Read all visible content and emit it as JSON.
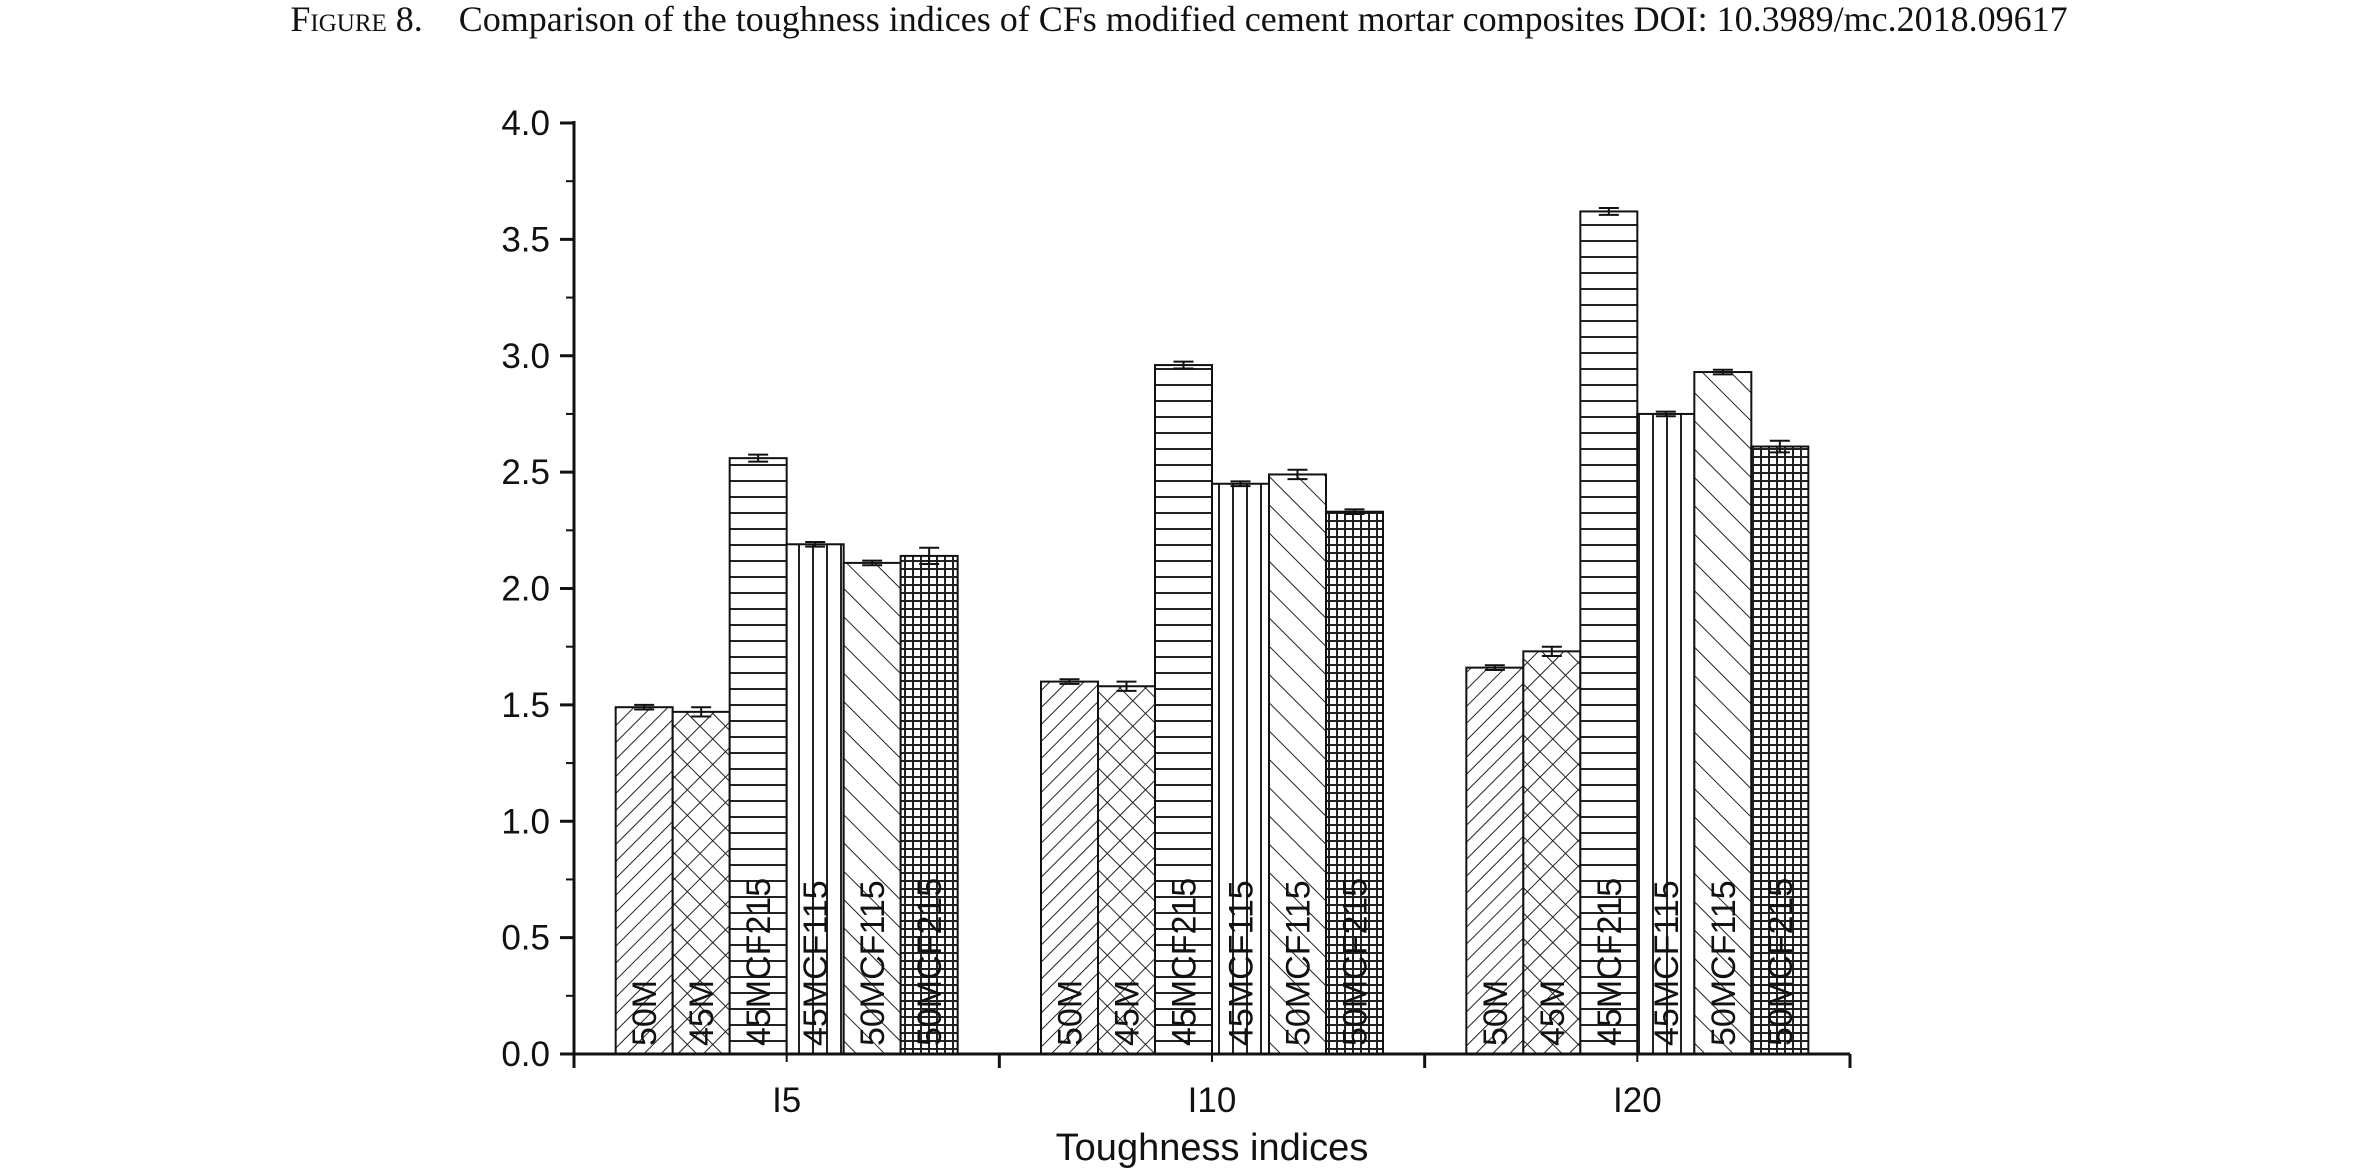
{
  "caption": {
    "figure": "Figure 8.",
    "text": "Comparison of the toughness indices of CFs modified cement mortar composites DOI: 10.3989/mc.2018.09617"
  },
  "chart_data": {
    "type": "bar",
    "title": "",
    "xlabel": "Toughness indices",
    "ylabel": "",
    "ylim": [
      0,
      4.0
    ],
    "yticks": [
      "0.0",
      "0.5",
      "1.0",
      "1.5",
      "2.0",
      "2.5",
      "3.0",
      "3.5",
      "4.0"
    ],
    "categories": [
      "I5",
      "I10",
      "I20"
    ],
    "series": [
      {
        "name": "50M",
        "values": [
          1.49,
          1.6,
          1.66
        ],
        "errors": [
          0.01,
          0.01,
          0.01
        ],
        "pattern": "diag-right"
      },
      {
        "name": "45M",
        "values": [
          1.47,
          1.58,
          1.73
        ],
        "errors": [
          0.02,
          0.02,
          0.02
        ],
        "pattern": "cross-hatch"
      },
      {
        "name": "45MCF215",
        "values": [
          2.56,
          2.96,
          3.62
        ],
        "errors": [
          0.015,
          0.015,
          0.015
        ],
        "pattern": "horizontal"
      },
      {
        "name": "45MCF115",
        "values": [
          2.19,
          2.45,
          2.75
        ],
        "errors": [
          0.01,
          0.01,
          0.01
        ],
        "pattern": "vertical"
      },
      {
        "name": "50MCF115",
        "values": [
          2.11,
          2.49,
          2.93
        ],
        "errors": [
          0.01,
          0.02,
          0.01
        ],
        "pattern": "diag-left"
      },
      {
        "name": "50MCF215",
        "values": [
          2.14,
          2.33,
          2.61
        ],
        "errors": [
          0.035,
          0.01,
          0.025
        ],
        "pattern": "grid"
      }
    ],
    "legend": "none"
  }
}
